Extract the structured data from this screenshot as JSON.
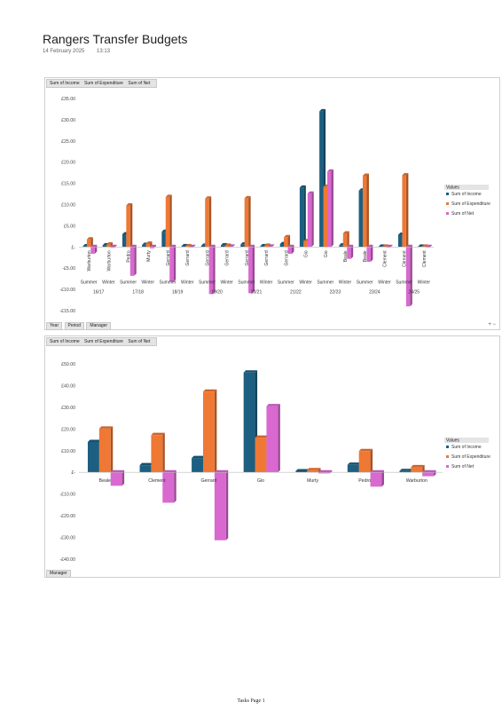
{
  "page": {
    "title": "Rangers Transfer Budgets",
    "date": "14 February 2025",
    "time": "13:13",
    "footer": "Tasks Page 1"
  },
  "colors": {
    "income": "#1d5f80",
    "expenditure": "#ef7835",
    "net": "#d968d0"
  },
  "chart_data": [
    {
      "type": "bar",
      "field_buttons": [
        "Sum of Income",
        "Sum of Expenditure",
        "Sum of Net"
      ],
      "axis_fields": [
        "Year",
        "Period",
        "Manager"
      ],
      "plus_minus": "+ −",
      "legend_title": "Values",
      "ylim": [
        -15,
        35
      ],
      "yticks": [
        -15,
        -10,
        -5,
        0,
        5,
        10,
        15,
        20,
        25,
        30,
        35
      ],
      "ytick_labels": [
        "-£15.00",
        "-£10.00",
        "-£5.00",
        "£-",
        "£5.00",
        "£10.00",
        "£15.00",
        "£20.00",
        "£25.00",
        "£30.00",
        "£35.00"
      ],
      "categories": [
        {
          "manager": "Warburton",
          "period": "Summer",
          "year": "16/17"
        },
        {
          "manager": "Warburton",
          "period": "Winter",
          "year": "16/17"
        },
        {
          "manager": "Pedro",
          "period": "Summer",
          "year": "17/18"
        },
        {
          "manager": "Murty",
          "period": "Winter",
          "year": "17/18"
        },
        {
          "manager": "Gerrard",
          "period": "Summer",
          "year": "18/19"
        },
        {
          "manager": "Gerrard",
          "period": "Winter",
          "year": "18/19"
        },
        {
          "manager": "Gerrard",
          "period": "Summer",
          "year": "19/20"
        },
        {
          "manager": "Gerrard",
          "period": "Winter",
          "year": "19/20"
        },
        {
          "manager": "Gerrard",
          "period": "Summer",
          "year": "20/21"
        },
        {
          "manager": "Gerrard",
          "period": "Winter",
          "year": "20/21"
        },
        {
          "manager": "Gerrard",
          "period": "Summer",
          "year": "21/22"
        },
        {
          "manager": "Gio",
          "period": "Winter",
          "year": "21/22"
        },
        {
          "manager": "Gio",
          "period": "Summer",
          "year": "22/23"
        },
        {
          "manager": "Beale",
          "period": "Winter",
          "year": "22/23"
        },
        {
          "manager": "Beale",
          "period": "Summer",
          "year": "23/24"
        },
        {
          "manager": "Clement",
          "period": "Winter",
          "year": "23/24"
        },
        {
          "manager": "Clement",
          "period": "Summer",
          "year": "24/25"
        },
        {
          "manager": "Clement",
          "period": "Winter",
          "year": "24/25"
        }
      ],
      "series": [
        {
          "name": "Sum of Income",
          "values": [
            0.2,
            0.4,
            3.0,
            0.5,
            3.6,
            0.2,
            0.3,
            0.4,
            0.6,
            0.2,
            0.7,
            14.0,
            32.0,
            0.4,
            13.3,
            0.1,
            2.9,
            0.1
          ]
        },
        {
          "name": "Sum of Expenditure",
          "values": [
            1.8,
            0.6,
            9.8,
            0.8,
            11.8,
            0.2,
            11.4,
            0.3,
            11.5,
            0.3,
            2.3,
            1.4,
            14.2,
            3.2,
            16.8,
            0.1,
            16.9,
            0.1
          ]
        },
        {
          "name": "Sum of Net",
          "values": [
            -1.6,
            -0.2,
            -6.8,
            -0.3,
            -8.2,
            0.0,
            -11.1,
            0.1,
            -10.9,
            0.1,
            -1.6,
            12.6,
            17.8,
            -2.8,
            -3.5,
            0.0,
            -14.0,
            0.0
          ]
        }
      ]
    },
    {
      "type": "bar",
      "field_buttons": [
        "Sum of Income",
        "Sum of Expenditure",
        "Sum of Net"
      ],
      "axis_fields": [
        "Manager"
      ],
      "legend_title": "Values",
      "ylim": [
        -40,
        50
      ],
      "yticks": [
        -40,
        -30,
        -20,
        -10,
        0,
        10,
        20,
        30,
        40,
        50
      ],
      "ytick_labels": [
        "-£40.00",
        "-£30.00",
        "-£20.00",
        "-£10.00",
        "£-",
        "£10.00",
        "£20.00",
        "£30.00",
        "£40.00",
        "£50.00"
      ],
      "categories": [
        "Beale",
        "Clement",
        "Gerrard",
        "Gio",
        "Murty",
        "Pedro",
        "Warburton"
      ],
      "series": [
        {
          "name": "Sum of Income",
          "values": [
            14.0,
            3.3,
            6.6,
            46.0,
            0.5,
            3.5,
            0.6
          ]
        },
        {
          "name": "Sum of Expenditure",
          "values": [
            20.2,
            17.2,
            37.2,
            16.0,
            1.0,
            9.8,
            2.4
          ]
        },
        {
          "name": "Sum of Net",
          "values": [
            -6.2,
            -14.0,
            -31.3,
            30.5,
            -0.5,
            -6.6,
            -1.8
          ]
        }
      ]
    }
  ]
}
